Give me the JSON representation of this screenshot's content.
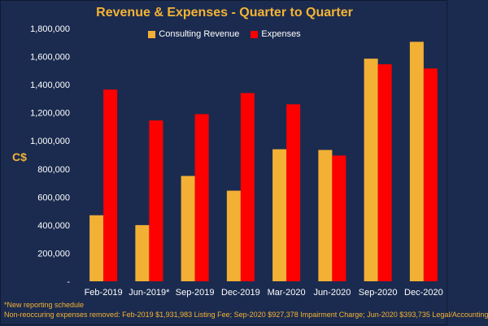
{
  "chart_data": {
    "type": "bar",
    "title": "Revenue & Expenses - Quarter to Quarter",
    "ylabel": "C$",
    "xlabel": "",
    "categories": [
      "Feb-2019",
      "Jun-2019*",
      "Sep-2019",
      "Dec-2019",
      "Mar-2020",
      "Jun-2020",
      "Sep-2020",
      "Dec-2020"
    ],
    "series": [
      {
        "name": "Consulting Revenue",
        "color": "#f2b135",
        "values": [
          470000,
          400000,
          750000,
          645000,
          940000,
          935000,
          1585000,
          1705000
        ]
      },
      {
        "name": "Expenses",
        "color": "#ff0000",
        "values": [
          1365000,
          1145000,
          1190000,
          1340000,
          1260000,
          895000,
          1545000,
          1515000
        ]
      }
    ],
    "ylim": [
      0,
      1800000
    ],
    "yticks": [
      0,
      200000,
      400000,
      600000,
      800000,
      1000000,
      1200000,
      1400000,
      1600000,
      1800000
    ],
    "ytick_labels": [
      "-",
      "200,000",
      "400,000",
      "600,000",
      "800,000",
      "1,000,000",
      "1,200,000",
      "1,400,000",
      "1,600,000",
      "1,800,000"
    ],
    "grid": false,
    "legend_position": "top-center"
  },
  "footnotes": {
    "line1": "*New reporting schedule",
    "line2": "Non-reoccuring expenses removed: Feb-2019 $1,931,983 Listing Fee; Sep-2020 $927,378 Impairment Charge; Jun-2020 $393,735 Legal/Accounting"
  }
}
